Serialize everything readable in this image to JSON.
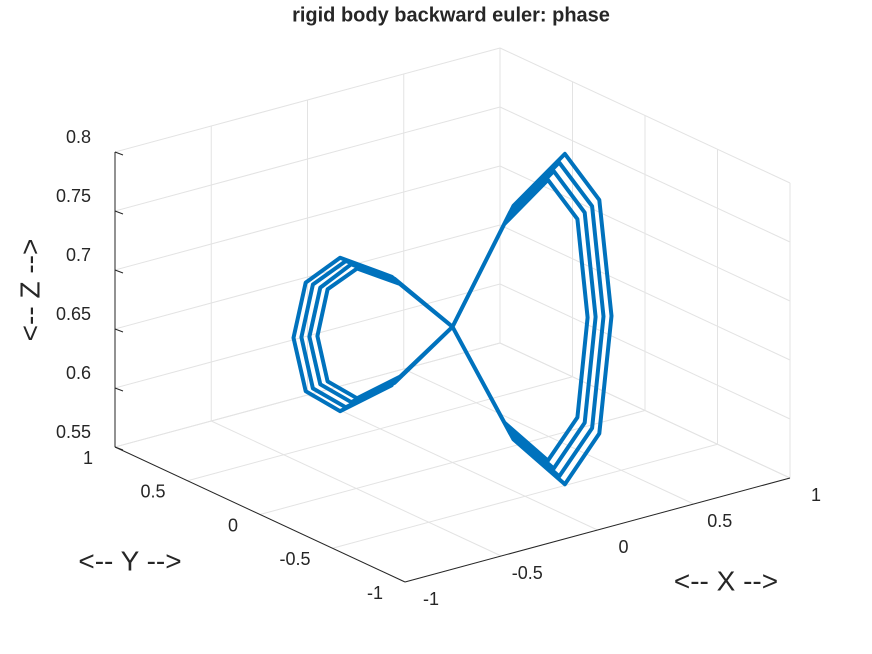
{
  "chart_data": {
    "type": "line3d",
    "title": "rigid body backward euler: phase",
    "xlabel": "<-- X -->",
    "ylabel": "<-- Y -->",
    "zlabel": "<-- Z -->",
    "xlim": [
      -1,
      1
    ],
    "ylim": [
      -1,
      1
    ],
    "zlim": [
      0.55,
      0.8
    ],
    "xticks": [
      -1,
      -0.5,
      0,
      0.5,
      1
    ],
    "yticks": [
      -1,
      -0.5,
      0,
      0.5,
      1
    ],
    "zticks": [
      0.55,
      0.6,
      0.65,
      0.7,
      0.75,
      0.8
    ],
    "grid": true,
    "series": [
      {
        "color": "#0072bd",
        "x": [
          0,
          0.195,
          0.36,
          0.471,
          0.51,
          0.471,
          0.36,
          0.195,
          0,
          -0.195,
          -0.36,
          -0.471,
          -0.51,
          -0.471,
          -0.36,
          -0.195,
          0,
          0.207,
          0.382,
          0.499,
          0.54,
          0.499,
          0.382,
          0.207,
          0,
          -0.207,
          -0.382,
          -0.499,
          -0.54,
          -0.499,
          -0.382,
          -0.207,
          0,
          0.218,
          0.403,
          0.527,
          0.57,
          0.527,
          0.403,
          0.218,
          0,
          -0.218,
          -0.403,
          -0.527,
          -0.57,
          -0.527,
          -0.403,
          -0.218,
          0,
          0.23,
          0.424,
          0.554,
          0.6,
          0.554,
          0.424,
          0.23,
          0,
          -0.23,
          -0.424,
          -0.554,
          -0.6,
          -0.554,
          -0.424,
          -0.23
        ],
        "y": [
          0,
          -0.098,
          -0.18,
          -0.236,
          -0.255,
          -0.236,
          -0.18,
          -0.098,
          0,
          0.098,
          0.18,
          0.236,
          0.255,
          0.236,
          0.18,
          0.098,
          0,
          -0.103,
          -0.191,
          -0.249,
          -0.27,
          -0.249,
          -0.191,
          -0.103,
          0,
          0.103,
          0.191,
          0.249,
          0.27,
          0.249,
          0.191,
          0.103,
          0,
          -0.109,
          -0.201,
          -0.263,
          -0.285,
          -0.263,
          -0.201,
          -0.109,
          0,
          0.109,
          0.201,
          0.263,
          0.285,
          0.263,
          0.201,
          0.109,
          0,
          -0.115,
          -0.212,
          -0.277,
          -0.3,
          -0.277,
          -0.212,
          -0.115,
          0,
          0.115,
          0.212,
          0.277,
          0.3,
          0.277,
          0.212,
          0.115
        ],
        "z": [
          0.665,
          0.749,
          0.784,
          0.749,
          0.665,
          0.581,
          0.546,
          0.581,
          0.665,
          0.704,
          0.72,
          0.704,
          0.665,
          0.626,
          0.61,
          0.626,
          0.665,
          0.754,
          0.791,
          0.754,
          0.665,
          0.576,
          0.539,
          0.576,
          0.665,
          0.706,
          0.724,
          0.706,
          0.665,
          0.624,
          0.607,
          0.624,
          0.665,
          0.759,
          0.798,
          0.759,
          0.665,
          0.571,
          0.532,
          0.571,
          0.665,
          0.709,
          0.727,
          0.709,
          0.665,
          0.621,
          0.603,
          0.621,
          0.665,
          0.764,
          0.805,
          0.764,
          0.665,
          0.566,
          0.525,
          0.566,
          0.665,
          0.711,
          0.73,
          0.711,
          0.665,
          0.619,
          0.6,
          0.619
        ]
      }
    ]
  }
}
